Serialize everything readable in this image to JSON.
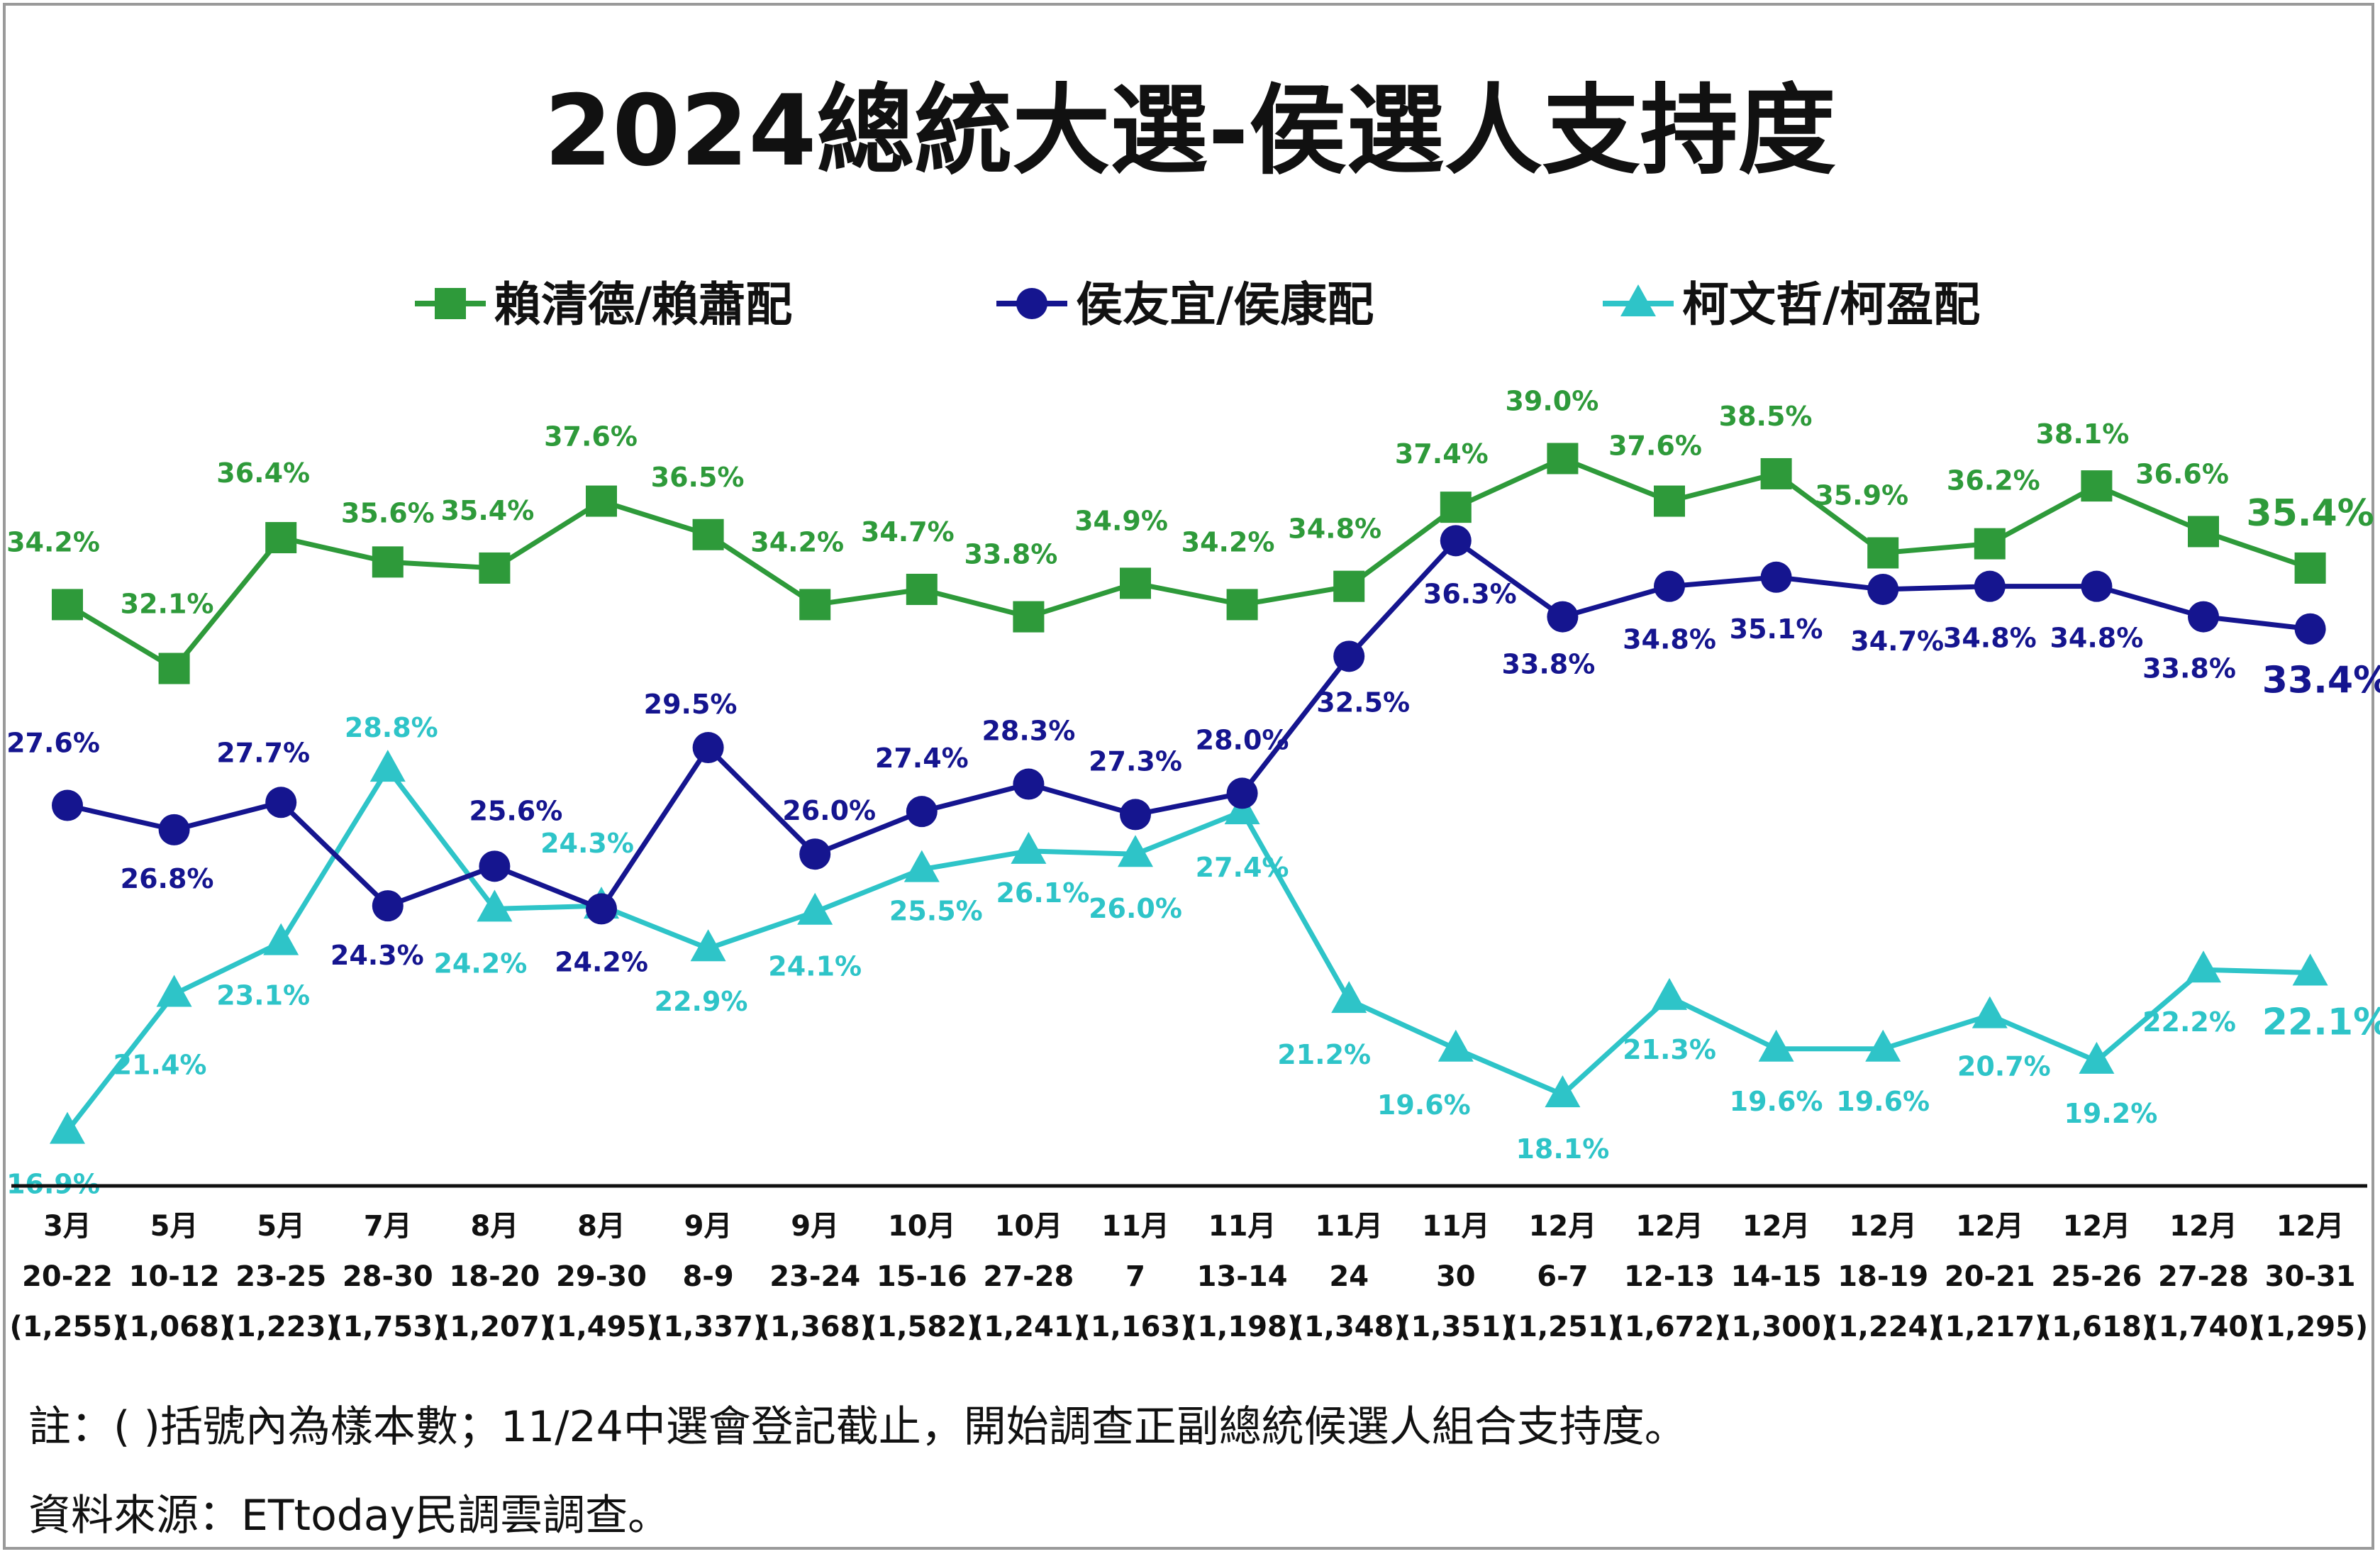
{
  "chart_data": {
    "type": "line",
    "title": "2024總統大選-侯選人支持度",
    "legend_position": "top",
    "grid": false,
    "x": [
      {
        "month": "3月",
        "days": "20-22",
        "sample": "(1,255)"
      },
      {
        "month": "5月",
        "days": "10-12",
        "sample": "(1,068)"
      },
      {
        "month": "5月",
        "days": "23-25",
        "sample": "(1,223)"
      },
      {
        "month": "7月",
        "days": "28-30",
        "sample": "(1,753)"
      },
      {
        "month": "8月",
        "days": "18-20",
        "sample": "(1,207)"
      },
      {
        "month": "8月",
        "days": "29-30",
        "sample": "(1,495)"
      },
      {
        "month": "9月",
        "days": "8-9",
        "sample": "(1,337)"
      },
      {
        "month": "9月",
        "days": "23-24",
        "sample": "(1,368)"
      },
      {
        "month": "10月",
        "days": "15-16",
        "sample": "(1,582)"
      },
      {
        "month": "10月",
        "days": "27-28",
        "sample": "(1,241)"
      },
      {
        "month": "11月",
        "days": "7",
        "sample": "(1,163)"
      },
      {
        "month": "11月",
        "days": "13-14",
        "sample": "(1,198)"
      },
      {
        "month": "11月",
        "days": "24",
        "sample": "(1,348)"
      },
      {
        "month": "11月",
        "days": "30",
        "sample": "(1,351)"
      },
      {
        "month": "12月",
        "days": "6-7",
        "sample": "(1,251)"
      },
      {
        "month": "12月",
        "days": "12-13",
        "sample": "(1,672)"
      },
      {
        "month": "12月",
        "days": "14-15",
        "sample": "(1,300)"
      },
      {
        "month": "12月",
        "days": "18-19",
        "sample": "(1,224)"
      },
      {
        "month": "12月",
        "days": "20-21",
        "sample": "(1,217)"
      },
      {
        "month": "12月",
        "days": "25-26",
        "sample": "(1,618)"
      },
      {
        "month": "12月",
        "days": "27-28",
        "sample": "(1,740)"
      },
      {
        "month": "12月",
        "days": "30-31",
        "sample": "(1,295)"
      }
    ],
    "series": [
      {
        "name": "賴清德/賴蕭配",
        "marker": "square",
        "color": "#2e9a3a",
        "values": [
          34.2,
          32.1,
          36.4,
          35.6,
          35.4,
          37.6,
          36.5,
          34.2,
          34.7,
          33.8,
          34.9,
          34.2,
          34.8,
          37.4,
          39.0,
          37.6,
          38.5,
          35.9,
          36.2,
          38.1,
          36.6,
          35.4
        ]
      },
      {
        "name": "侯友宜/侯康配",
        "marker": "circle",
        "color": "#15158f",
        "values": [
          27.6,
          26.8,
          27.7,
          24.3,
          25.6,
          24.2,
          29.5,
          26.0,
          27.4,
          28.3,
          27.3,
          28.0,
          32.5,
          36.3,
          33.8,
          34.8,
          35.1,
          34.7,
          34.8,
          34.8,
          33.8,
          33.4
        ]
      },
      {
        "name": "柯文哲/柯盈配",
        "marker": "triangle",
        "color": "#2ec4c8",
        "values": [
          16.9,
          21.4,
          23.1,
          28.8,
          24.2,
          24.3,
          22.9,
          24.1,
          25.5,
          26.1,
          26.0,
          27.4,
          21.2,
          19.6,
          18.1,
          21.3,
          19.6,
          19.6,
          20.7,
          19.2,
          22.2,
          22.1
        ]
      }
    ]
  },
  "notes": {
    "line1": "註：( )括號內為樣本數；11/24中選會登記截止，開始調查正副總統候選人組合支持度。",
    "line2": "資料來源：ETtoday民調雲調查。"
  }
}
